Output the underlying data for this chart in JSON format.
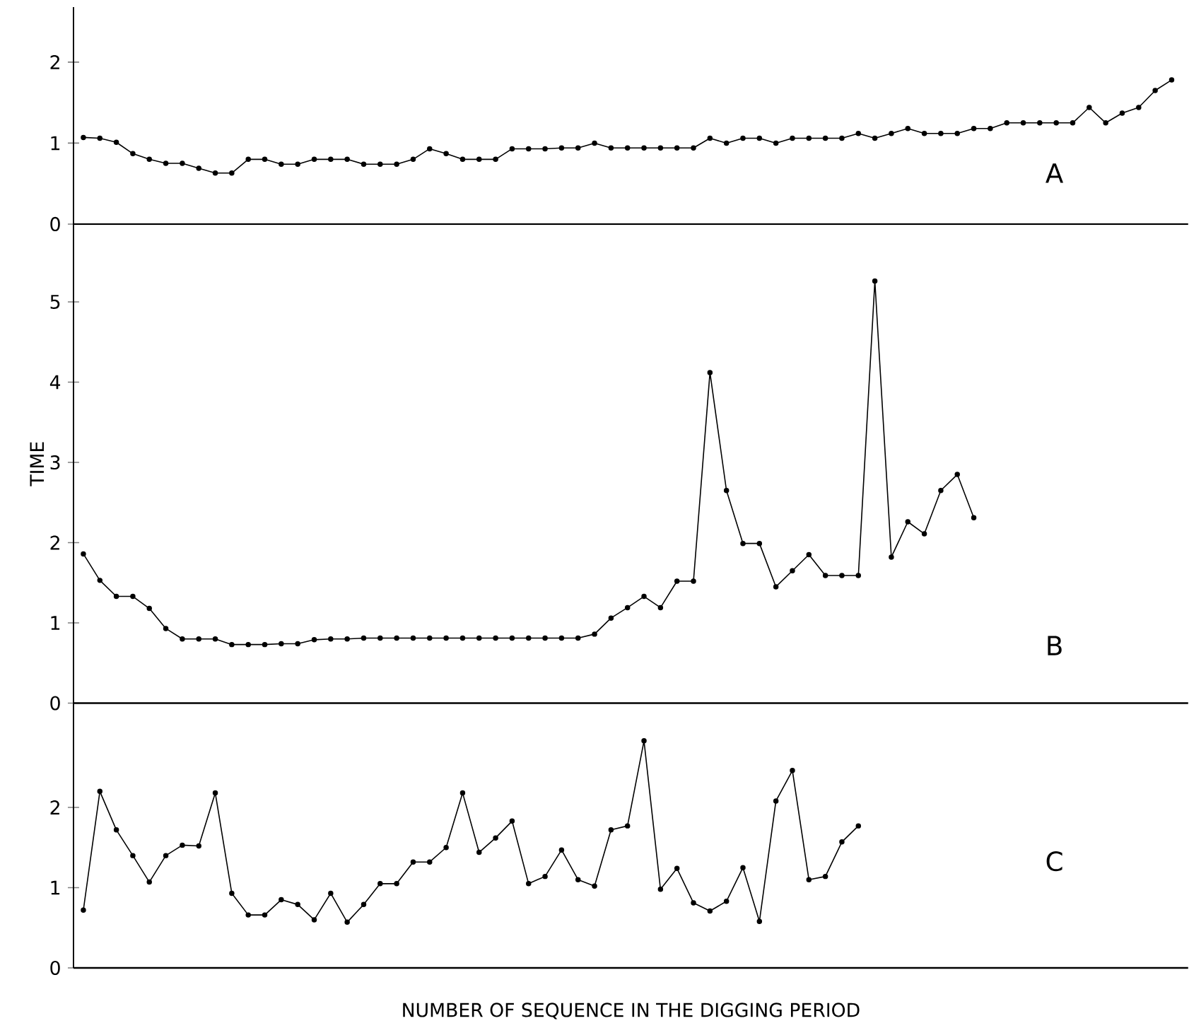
{
  "chart_data": [
    {
      "type": "line",
      "categories": [
        null,
        null,
        null,
        null,
        null,
        null,
        null,
        null,
        null,
        null,
        null,
        null,
        null,
        null,
        null,
        null,
        null,
        null,
        null,
        null,
        null,
        null,
        null,
        null,
        null,
        null,
        null,
        null,
        null,
        null,
        null,
        null,
        null,
        null,
        null,
        null,
        null,
        null,
        null,
        null,
        null,
        null,
        null,
        null,
        null,
        null,
        null,
        null,
        null,
        null,
        null,
        null,
        null,
        null,
        null,
        null,
        null,
        null,
        null,
        null,
        null,
        null,
        null,
        null,
        null,
        null,
        null
      ],
      "values": [
        1.07,
        1.06,
        1.01,
        0.87,
        0.8,
        0.75,
        0.75,
        0.69,
        0.63,
        0.63,
        0.8,
        0.8,
        0.74,
        0.74,
        0.8,
        0.8,
        0.8,
        0.74,
        0.74,
        0.74,
        0.8,
        0.93,
        0.87,
        0.8,
        0.8,
        0.8,
        0.93,
        0.93,
        0.93,
        0.94,
        0.94,
        1.0,
        0.94,
        0.94,
        0.94,
        0.94,
        0.94,
        0.94,
        1.06,
        1.0,
        1.06,
        1.06,
        1.0,
        1.06,
        1.06,
        1.06,
        1.06,
        1.12,
        1.06,
        1.12,
        1.18,
        1.12,
        1.12,
        1.12,
        1.18,
        1.18,
        1.25,
        1.25,
        1.25,
        1.25,
        1.25,
        1.44,
        1.25,
        1.37,
        1.44,
        1.65,
        1.78
      ],
      "color": "#000000",
      "marker": "circle",
      "line_style": "solid",
      "ylim": [
        0,
        2.68
      ],
      "yticks": [
        0,
        1,
        2
      ],
      "tick_labels": "y",
      "annotations": [
        "A"
      ]
    },
    {
      "type": "line",
      "categories": [
        null,
        null,
        null,
        null,
        null,
        null,
        null,
        null,
        null,
        null,
        null,
        null,
        null,
        null,
        null,
        null,
        null,
        null,
        null,
        null,
        null,
        null,
        null,
        null,
        null,
        null,
        null,
        null,
        null,
        null,
        null,
        null,
        null,
        null,
        null,
        null,
        null,
        null,
        null,
        null,
        null,
        null,
        null,
        null,
        null,
        null,
        null,
        null,
        null,
        null,
        null,
        null,
        null,
        null,
        null,
        null,
        null,
        null,
        null,
        null,
        null,
        null,
        null,
        null,
        null,
        null,
        null
      ],
      "values": [
        1.86,
        1.53,
        1.33,
        1.33,
        1.18,
        0.93,
        0.8,
        0.8,
        0.8,
        0.73,
        0.73,
        0.73,
        0.74,
        0.74,
        0.79,
        0.8,
        0.8,
        0.81,
        0.81,
        0.81,
        0.81,
        0.81,
        0.81,
        0.81,
        0.81,
        0.81,
        0.81,
        0.81,
        0.81,
        0.81,
        0.81,
        0.86,
        1.06,
        1.19,
        1.33,
        1.19,
        1.52,
        1.52,
        4.12,
        2.65,
        1.99,
        1.99,
        1.45,
        1.65,
        1.85,
        1.59,
        1.59,
        1.59,
        5.26,
        1.82,
        2.26,
        2.11,
        2.65,
        2.85,
        2.31,
        null,
        null,
        null,
        null,
        null,
        null,
        null,
        null,
        null,
        null,
        null,
        null
      ],
      "color": "#000000",
      "marker": "circle",
      "line_style": "solid",
      "ylim": [
        0,
        5.97
      ],
      "yticks": [
        0,
        1,
        2,
        3,
        4,
        5
      ],
      "tick_labels": "y",
      "ylabel": "TIME",
      "annotations": [
        "B"
      ]
    },
    {
      "type": "line",
      "categories": [
        null,
        null,
        null,
        null,
        null,
        null,
        null,
        null,
        null,
        null,
        null,
        null,
        null,
        null,
        null,
        null,
        null,
        null,
        null,
        null,
        null,
        null,
        null,
        null,
        null,
        null,
        null,
        null,
        null,
        null,
        null,
        null,
        null,
        null,
        null,
        null,
        null,
        null,
        null,
        null,
        null,
        null,
        null,
        null,
        null,
        null,
        null,
        null,
        null,
        null,
        null,
        null,
        null,
        null,
        null,
        null,
        null,
        null,
        null,
        null,
        null,
        null,
        null,
        null,
        null,
        null,
        null
      ],
      "values": [
        0.72,
        2.2,
        1.72,
        1.4,
        1.07,
        1.4,
        1.53,
        1.52,
        2.18,
        0.93,
        0.66,
        0.66,
        0.85,
        0.79,
        0.6,
        0.93,
        0.57,
        0.79,
        1.05,
        1.05,
        1.32,
        1.32,
        1.5,
        2.18,
        1.44,
        1.62,
        1.83,
        1.05,
        1.14,
        1.47,
        1.1,
        1.02,
        1.72,
        1.77,
        2.83,
        0.98,
        1.24,
        0.81,
        0.71,
        0.83,
        1.25,
        0.58,
        2.08,
        2.46,
        1.1,
        1.14,
        1.57,
        1.77,
        null,
        null,
        null,
        null,
        null,
        null,
        null,
        null,
        null,
        null,
        null,
        null,
        null,
        null,
        null,
        null,
        null,
        null,
        null
      ],
      "color": "#000000",
      "marker": "circle",
      "line_style": "solid",
      "ylim": [
        0,
        3.3
      ],
      "yticks": [
        0,
        1,
        2
      ],
      "tick_labels": "y",
      "xlabel": "NUMBER OF SEQUENCE IN THE DIGGING PERIOD",
      "annotations": [
        "C"
      ]
    }
  ]
}
